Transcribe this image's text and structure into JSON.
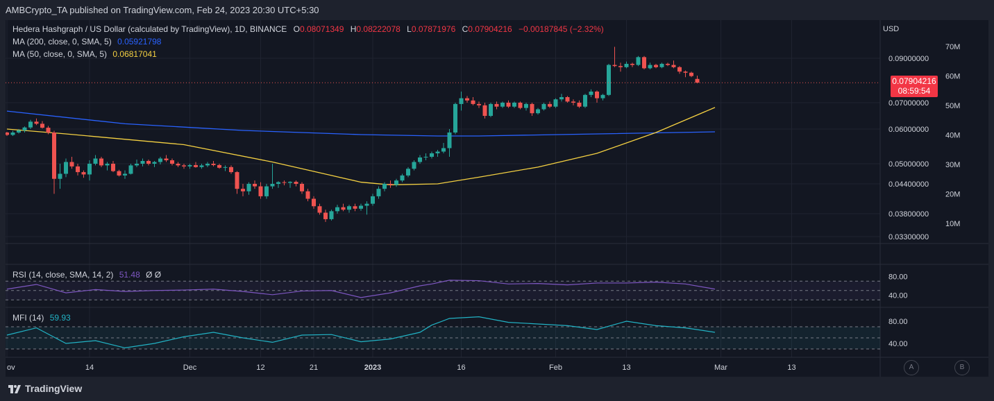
{
  "header": {
    "publisher": "AMBCrypto_TA published on TradingView.com, Feb 24, 2023 20:30 UTC+5:30"
  },
  "legend": {
    "symbol": "Hedera Hashgraph / US Dollar (calculated by TradingView), 1D, BINANCE",
    "o_label": "O",
    "o_value": "0.08071349",
    "h_label": "H",
    "h_value": "0.08222078",
    "l_label": "L",
    "l_value": "0.07871976",
    "c_label": "C",
    "c_value": "0.07904216",
    "change": "−0.00187845 (−2.32%)",
    "ma200_label": "MA (200, close, 0, SMA, 5)",
    "ma200_value": "0.05921798",
    "ma50_label": "MA (50, close, 0, SMA, 5)",
    "ma50_value": "0.06817041",
    "rsi_label": "RSI (14, close, SMA, 14, 2)",
    "rsi_value": "51.48",
    "rsi_extra": "Ø Ø",
    "mfi_label": "MFI (14)",
    "mfi_value": "59.93"
  },
  "price_tag": {
    "price": "0.07904216",
    "countdown": "08:59:54"
  },
  "colors": {
    "up": "#26a69a",
    "down": "#ef5350",
    "ma200": "#2962ff",
    "ma50": "#f5d142",
    "rsi": "#7e57c2",
    "mfi": "#22b3c5",
    "bg": "#131722"
  },
  "chart_data": {
    "type": "candlestick",
    "title": "Hedera Hashgraph / US Dollar, 1D, BINANCE",
    "currency_label": "USD",
    "price_ticks": [
      "0.09000000",
      "0.07000000",
      "0.06000000",
      "0.05000000",
      "0.04400000",
      "0.03800000",
      "0.03300000"
    ],
    "price_tick_values": [
      0.09,
      0.07,
      0.06,
      0.05,
      0.044,
      0.038,
      0.033
    ],
    "volume_ticks": [
      "70M",
      "60M",
      "50M",
      "40M",
      "30M",
      "20M",
      "10M"
    ],
    "volume_tick_values": [
      70,
      60,
      50,
      40,
      30,
      20,
      10
    ],
    "x_ticks": [
      "ov",
      "14",
      "Dec",
      "12",
      "21",
      "2023",
      "16",
      "Feb",
      "13",
      "Mar",
      "13"
    ],
    "x_tick_days": [
      0,
      14,
      31,
      43,
      52,
      62,
      77,
      93,
      105,
      121,
      133
    ],
    "rsi_ticks": [
      "80.00",
      "40.00"
    ],
    "mfi_ticks": [
      "80.00",
      "40.00"
    ],
    "scale_buttons": [
      "A",
      "B"
    ],
    "candles": [
      [
        0.059,
        0.0592,
        0.058,
        0.0583
      ],
      [
        0.0583,
        0.0595,
        0.058,
        0.059
      ],
      [
        0.059,
        0.06,
        0.0587,
        0.0596
      ],
      [
        0.0596,
        0.061,
        0.059,
        0.0606
      ],
      [
        0.0606,
        0.0635,
        0.06,
        0.0628
      ],
      [
        0.0628,
        0.064,
        0.0615,
        0.062
      ],
      [
        0.062,
        0.063,
        0.0602,
        0.0605
      ],
      [
        0.0605,
        0.0612,
        0.0585,
        0.059
      ],
      [
        0.059,
        0.0595,
        0.042,
        0.0455
      ],
      [
        0.0455,
        0.05,
        0.043,
        0.047
      ],
      [
        0.047,
        0.0515,
        0.046,
        0.0505
      ],
      [
        0.0505,
        0.052,
        0.0485,
        0.0492
      ],
      [
        0.0492,
        0.05,
        0.0465,
        0.0475
      ],
      [
        0.0475,
        0.048,
        0.0458,
        0.0468
      ],
      [
        0.0468,
        0.051,
        0.045,
        0.05
      ],
      [
        0.05,
        0.0525,
        0.0495,
        0.0515
      ],
      [
        0.0515,
        0.052,
        0.049,
        0.0495
      ],
      [
        0.0495,
        0.0505,
        0.048,
        0.05
      ],
      [
        0.05,
        0.0508,
        0.0475,
        0.0478
      ],
      [
        0.0478,
        0.0482,
        0.0462,
        0.0465
      ],
      [
        0.0465,
        0.048,
        0.0455,
        0.047
      ],
      [
        0.047,
        0.05,
        0.0468,
        0.0495
      ],
      [
        0.0495,
        0.0512,
        0.049,
        0.05
      ],
      [
        0.05,
        0.0515,
        0.0492,
        0.0508
      ],
      [
        0.0508,
        0.0512,
        0.0495,
        0.05
      ],
      [
        0.05,
        0.0508,
        0.049,
        0.0505
      ],
      [
        0.0505,
        0.052,
        0.0498,
        0.0515
      ],
      [
        0.0515,
        0.0525,
        0.0505,
        0.051
      ],
      [
        0.051,
        0.0515,
        0.0495,
        0.05
      ],
      [
        0.05,
        0.0505,
        0.049,
        0.0495
      ],
      [
        0.0495,
        0.05,
        0.0485,
        0.0492
      ],
      [
        0.0492,
        0.05,
        0.0485,
        0.0496
      ],
      [
        0.0496,
        0.0505,
        0.0488,
        0.049
      ],
      [
        0.049,
        0.05,
        0.0485,
        0.0495
      ],
      [
        0.0495,
        0.0505,
        0.049,
        0.05
      ],
      [
        0.05,
        0.0508,
        0.0492,
        0.0496
      ],
      [
        0.0496,
        0.05,
        0.0485,
        0.0488
      ],
      [
        0.0488,
        0.0495,
        0.0478,
        0.049
      ],
      [
        0.049,
        0.0495,
        0.047,
        0.0475
      ],
      [
        0.0475,
        0.0478,
        0.042,
        0.043
      ],
      [
        0.043,
        0.044,
        0.0415,
        0.0425
      ],
      [
        0.0425,
        0.0445,
        0.0418,
        0.044
      ],
      [
        0.044,
        0.045,
        0.043,
        0.0435
      ],
      [
        0.0435,
        0.0445,
        0.041,
        0.0415
      ],
      [
        0.0415,
        0.044,
        0.041,
        0.0435
      ],
      [
        0.0435,
        0.05,
        0.043,
        0.044
      ],
      [
        0.044,
        0.0448,
        0.0432,
        0.0445
      ],
      [
        0.0445,
        0.045,
        0.0437,
        0.0443
      ],
      [
        0.0443,
        0.0448,
        0.0432,
        0.0446
      ],
      [
        0.0446,
        0.045,
        0.0435,
        0.044
      ],
      [
        0.044,
        0.0445,
        0.042,
        0.0425
      ],
      [
        0.0425,
        0.043,
        0.0405,
        0.041
      ],
      [
        0.041,
        0.0415,
        0.039,
        0.0395
      ],
      [
        0.0395,
        0.04,
        0.0378,
        0.0382
      ],
      [
        0.0382,
        0.0388,
        0.0362,
        0.0368
      ],
      [
        0.0368,
        0.0388,
        0.0365,
        0.0385
      ],
      [
        0.0385,
        0.0398,
        0.038,
        0.0393
      ],
      [
        0.0393,
        0.04,
        0.0385,
        0.0388
      ],
      [
        0.0388,
        0.0398,
        0.0382,
        0.0395
      ],
      [
        0.0395,
        0.04,
        0.0385,
        0.039
      ],
      [
        0.039,
        0.04,
        0.0386,
        0.0396
      ],
      [
        0.0396,
        0.0405,
        0.0378,
        0.04
      ],
      [
        0.04,
        0.042,
        0.0396,
        0.0415
      ],
      [
        0.0415,
        0.0435,
        0.041,
        0.043
      ],
      [
        0.043,
        0.0445,
        0.0425,
        0.044
      ],
      [
        0.044,
        0.045,
        0.0432,
        0.0438
      ],
      [
        0.0438,
        0.0455,
        0.0434,
        0.045
      ],
      [
        0.045,
        0.047,
        0.0445,
        0.0465
      ],
      [
        0.0465,
        0.049,
        0.046,
        0.0485
      ],
      [
        0.0485,
        0.051,
        0.048,
        0.0505
      ],
      [
        0.0505,
        0.0525,
        0.05,
        0.0518
      ],
      [
        0.0518,
        0.053,
        0.051,
        0.052
      ],
      [
        0.052,
        0.0535,
        0.0515,
        0.053
      ],
      [
        0.053,
        0.054,
        0.052,
        0.0535
      ],
      [
        0.0535,
        0.056,
        0.053,
        0.0545
      ],
      [
        0.0545,
        0.06,
        0.052,
        0.059
      ],
      [
        0.059,
        0.07,
        0.0585,
        0.0695
      ],
      [
        0.0695,
        0.075,
        0.067,
        0.072
      ],
      [
        0.072,
        0.073,
        0.07,
        0.071
      ],
      [
        0.071,
        0.0725,
        0.069,
        0.0695
      ],
      [
        0.0695,
        0.0705,
        0.068,
        0.069
      ],
      [
        0.069,
        0.07,
        0.064,
        0.065
      ],
      [
        0.065,
        0.07,
        0.0645,
        0.0695
      ],
      [
        0.0695,
        0.0705,
        0.0675,
        0.0685
      ],
      [
        0.0685,
        0.0705,
        0.068,
        0.07
      ],
      [
        0.07,
        0.071,
        0.068,
        0.0685
      ],
      [
        0.0685,
        0.0705,
        0.068,
        0.07
      ],
      [
        0.07,
        0.0705,
        0.0675,
        0.068
      ],
      [
        0.068,
        0.07,
        0.067,
        0.0695
      ],
      [
        0.0695,
        0.07,
        0.065,
        0.066
      ],
      [
        0.066,
        0.068,
        0.0655,
        0.0675
      ],
      [
        0.0675,
        0.07,
        0.067,
        0.0695
      ],
      [
        0.0695,
        0.0705,
        0.068,
        0.0685
      ],
      [
        0.0685,
        0.072,
        0.068,
        0.0715
      ],
      [
        0.0715,
        0.074,
        0.0705,
        0.0725
      ],
      [
        0.0725,
        0.073,
        0.07,
        0.0705
      ],
      [
        0.0705,
        0.0715,
        0.069,
        0.07
      ],
      [
        0.07,
        0.071,
        0.068,
        0.0685
      ],
      [
        0.0685,
        0.074,
        0.068,
        0.0735
      ],
      [
        0.0735,
        0.076,
        0.0725,
        0.075
      ],
      [
        0.075,
        0.0755,
        0.07,
        0.072
      ],
      [
        0.072,
        0.074,
        0.071,
        0.0735
      ],
      [
        0.0735,
        0.0875,
        0.073,
        0.087
      ],
      [
        0.087,
        0.095,
        0.086,
        0.0865
      ],
      [
        0.0865,
        0.088,
        0.084,
        0.086
      ],
      [
        0.086,
        0.0885,
        0.0855,
        0.0875
      ],
      [
        0.0875,
        0.088,
        0.086,
        0.087
      ],
      [
        0.087,
        0.091,
        0.0865,
        0.0905
      ],
      [
        0.0905,
        0.091,
        0.085,
        0.0855
      ],
      [
        0.0855,
        0.088,
        0.085,
        0.087
      ],
      [
        0.087,
        0.0875,
        0.0855,
        0.086
      ],
      [
        0.086,
        0.088,
        0.0855,
        0.0875
      ],
      [
        0.0875,
        0.088,
        0.0865,
        0.087
      ],
      [
        0.087,
        0.089,
        0.0855,
        0.086
      ],
      [
        0.086,
        0.0865,
        0.083,
        0.084
      ],
      [
        0.084,
        0.0845,
        0.0815,
        0.0835
      ],
      [
        0.0835,
        0.084,
        0.0815,
        0.082
      ],
      [
        0.0807,
        0.0822,
        0.0787,
        0.079
      ]
    ],
    "ma200": {
      "name": "MA 200",
      "days": [
        0,
        20,
        40,
        60,
        73,
        80,
        120
      ],
      "values": [
        0.0668,
        0.062,
        0.0596,
        0.0584,
        0.058,
        0.058,
        0.0592
      ]
    },
    "ma50": {
      "name": "MA 50",
      "days": [
        0,
        10,
        30,
        45,
        55,
        60,
        65,
        73,
        80,
        90,
        100,
        110,
        120
      ],
      "values": [
        0.06,
        0.0586,
        0.0555,
        0.0505,
        0.0465,
        0.0445,
        0.0438,
        0.044,
        0.046,
        0.049,
        0.053,
        0.059,
        0.0682
      ]
    },
    "rsi": {
      "name": "RSI (14)",
      "days": [
        0,
        5,
        10,
        15,
        20,
        25,
        30,
        35,
        40,
        45,
        50,
        55,
        60,
        65,
        70,
        72,
        75,
        80,
        85,
        90,
        95,
        100,
        105,
        110,
        115,
        120
      ],
      "values": [
        53,
        63,
        45,
        52,
        48,
        50,
        51,
        53,
        48,
        41,
        49,
        50,
        35,
        45,
        60,
        64,
        72,
        71,
        64,
        65,
        62,
        66,
        66,
        68,
        64,
        53
      ]
    },
    "mfi": {
      "name": "MFI (14)",
      "days": [
        0,
        5,
        10,
        15,
        20,
        25,
        30,
        35,
        40,
        45,
        50,
        55,
        60,
        65,
        70,
        72,
        75,
        80,
        85,
        90,
        95,
        100,
        105,
        110,
        115,
        120
      ],
      "values": [
        55,
        68,
        40,
        45,
        32,
        40,
        52,
        60,
        50,
        42,
        55,
        56,
        43,
        48,
        60,
        73,
        85,
        88,
        78,
        75,
        72,
        65,
        80,
        72,
        68,
        60
      ]
    }
  }
}
